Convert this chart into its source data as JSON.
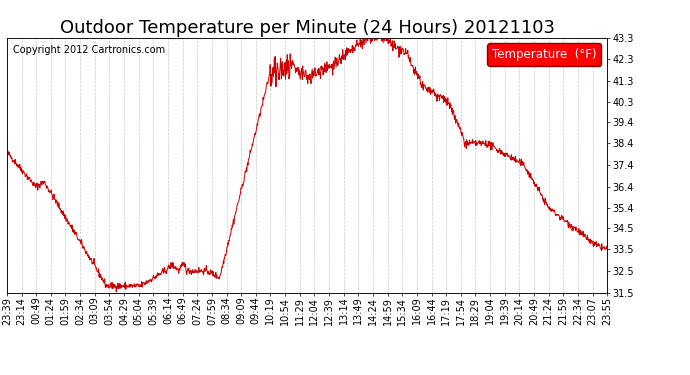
{
  "title": "Outdoor Temperature per Minute (24 Hours) 20121103",
  "copyright": "Copyright 2012 Cartronics.com",
  "legend_label": "Temperature  (°F)",
  "line_color": "#cc0000",
  "background_color": "#ffffff",
  "plot_bg_color": "#ffffff",
  "grid_color": "#c8c8c8",
  "ylim": [
    31.5,
    43.3
  ],
  "yticks": [
    31.5,
    32.5,
    33.5,
    34.5,
    35.4,
    36.4,
    37.4,
    38.4,
    39.4,
    40.3,
    41.3,
    42.3,
    43.3
  ],
  "xtick_labels": [
    "23:39",
    "23:14",
    "00:49",
    "01:24",
    "01:59",
    "02:34",
    "03:09",
    "03:54",
    "04:29",
    "05:04",
    "05:39",
    "06:14",
    "06:49",
    "07:24",
    "07:59",
    "08:34",
    "09:09",
    "09:44",
    "10:19",
    "10:54",
    "11:29",
    "12:04",
    "12:39",
    "13:14",
    "13:49",
    "14:24",
    "14:59",
    "15:34",
    "16:09",
    "16:44",
    "17:19",
    "17:54",
    "18:29",
    "19:04",
    "19:39",
    "20:14",
    "20:49",
    "21:24",
    "21:59",
    "22:34",
    "23:07",
    "23:55"
  ],
  "title_fontsize": 13,
  "copyright_fontsize": 7,
  "tick_fontsize": 7,
  "legend_fontsize": 8.5
}
